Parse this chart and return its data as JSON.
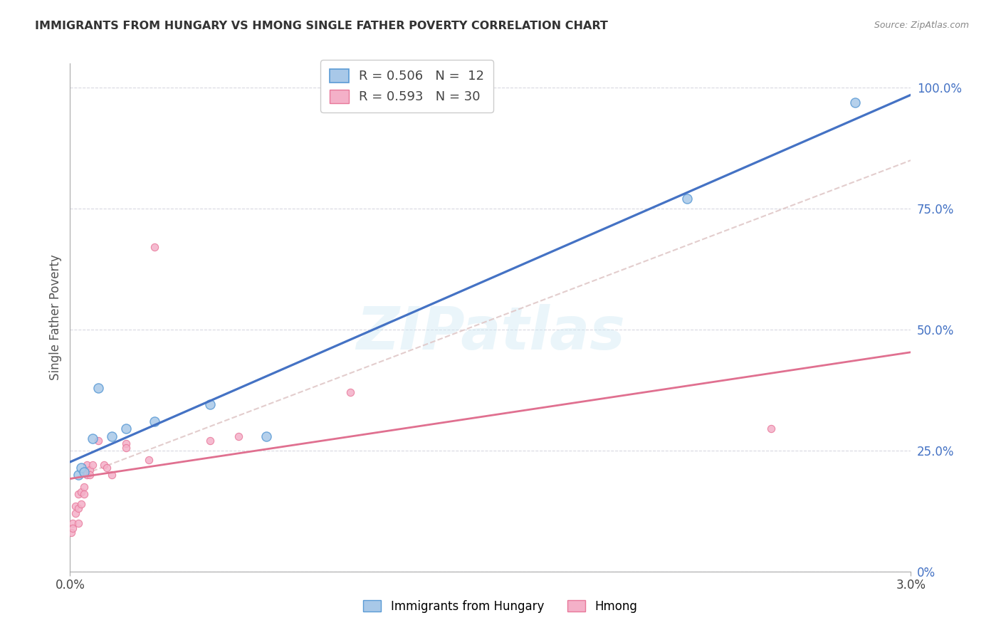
{
  "title": "IMMIGRANTS FROM HUNGARY VS HMONG SINGLE FATHER POVERTY CORRELATION CHART",
  "source": "Source: ZipAtlas.com",
  "ylabel": "Single Father Poverty",
  "right_yticks": [
    "0%",
    "25.0%",
    "50.0%",
    "75.0%",
    "100.0%"
  ],
  "right_ytick_vals": [
    0.0,
    0.25,
    0.5,
    0.75,
    1.0
  ],
  "xlim": [
    0.0,
    0.03
  ],
  "ylim": [
    0.0,
    1.05
  ],
  "hungary_color": "#a8c8e8",
  "hmong_color": "#f4b0c8",
  "hungary_edge_color": "#5b9bd5",
  "hmong_edge_color": "#e8789a",
  "hungary_line_color": "#4472c4",
  "hmong_line_color": "#e07090",
  "diagonal_color": "#e0c8c8",
  "watermark": "ZIPatlas",
  "hungary_x": [
    0.0003,
    0.0004,
    0.0005,
    0.0008,
    0.001,
    0.0015,
    0.002,
    0.003,
    0.005,
    0.007,
    0.022,
    0.028
  ],
  "hungary_y": [
    0.2,
    0.215,
    0.205,
    0.275,
    0.38,
    0.28,
    0.295,
    0.31,
    0.345,
    0.28,
    0.77,
    0.97
  ],
  "hmong_x": [
    5e-05,
    0.0001,
    0.0001,
    0.0002,
    0.0002,
    0.0003,
    0.0003,
    0.0003,
    0.0004,
    0.0004,
    0.0005,
    0.0005,
    0.0006,
    0.0006,
    0.0006,
    0.0007,
    0.0007,
    0.0008,
    0.001,
    0.0012,
    0.0013,
    0.0015,
    0.002,
    0.002,
    0.0028,
    0.003,
    0.005,
    0.006,
    0.01,
    0.025
  ],
  "hmong_y": [
    0.08,
    0.1,
    0.09,
    0.12,
    0.135,
    0.13,
    0.16,
    0.1,
    0.14,
    0.165,
    0.175,
    0.16,
    0.22,
    0.2,
    0.205,
    0.21,
    0.2,
    0.22,
    0.27,
    0.22,
    0.215,
    0.2,
    0.265,
    0.255,
    0.23,
    0.67,
    0.27,
    0.28,
    0.37,
    0.295
  ],
  "hungary_size": 90,
  "hmong_size": 55,
  "legend_hungary_label": "R = 0.506   N =  12",
  "legend_hmong_label": "R = 0.593   N = 30",
  "background_color": "#ffffff",
  "grid_color": "#d8d8e0"
}
